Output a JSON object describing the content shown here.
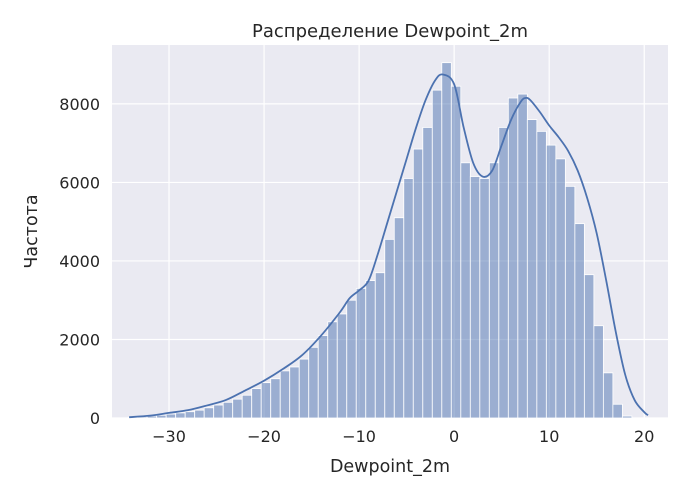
{
  "chart_data": {
    "type": "histogram",
    "title": "Распределение Dewpoint_2m",
    "xlabel": "Dewpoint_2m",
    "ylabel": "Частота",
    "xlim": [
      -36,
      22.5
    ],
    "ylim": [
      0,
      9500
    ],
    "xticks": [
      -30,
      -20,
      -10,
      0,
      10,
      20
    ],
    "xtick_labels": [
      "−30",
      "−20",
      "−10",
      "0",
      "10",
      "20"
    ],
    "yticks": [
      0,
      2000,
      4000,
      6000,
      8000
    ],
    "ytick_labels": [
      "0",
      "2000",
      "4000",
      "6000",
      "8000"
    ],
    "grid": true,
    "bin_start": -34.3,
    "bin_width": 1.0,
    "counts": [
      20,
      30,
      50,
      70,
      100,
      130,
      160,
      200,
      260,
      330,
      400,
      480,
      580,
      750,
      900,
      1000,
      1200,
      1300,
      1500,
      1800,
      2100,
      2450,
      2650,
      3000,
      3300,
      3500,
      3700,
      4550,
      5100,
      6100,
      6850,
      7400,
      8350,
      9050,
      8450,
      6500,
      6150,
      6100,
      6500,
      7400,
      8150,
      8250,
      7600,
      7300,
      6950,
      6600,
      5900,
      4950,
      3650,
      2350,
      1150,
      350,
      50
    ],
    "kde": [
      [
        -34.2,
        20
      ],
      [
        -32,
        60
      ],
      [
        -30,
        130
      ],
      [
        -28,
        200
      ],
      [
        -26,
        320
      ],
      [
        -24,
        460
      ],
      [
        -22,
        700
      ],
      [
        -20,
        950
      ],
      [
        -18,
        1250
      ],
      [
        -16,
        1600
      ],
      [
        -14,
        2100
      ],
      [
        -12,
        2700
      ],
      [
        -11,
        3050
      ],
      [
        -10,
        3250
      ],
      [
        -9,
        3500
      ],
      [
        -8,
        4200
      ],
      [
        -7,
        5000
      ],
      [
        -6,
        5800
      ],
      [
        -5,
        6600
      ],
      [
        -4,
        7400
      ],
      [
        -3,
        8100
      ],
      [
        -2,
        8600
      ],
      [
        -1.2,
        8750
      ],
      [
        0,
        8500
      ],
      [
        1,
        7400
      ],
      [
        2,
        6500
      ],
      [
        3,
        6150
      ],
      [
        4,
        6300
      ],
      [
        5,
        6950
      ],
      [
        6,
        7600
      ],
      [
        7,
        8050
      ],
      [
        7.5,
        8150
      ],
      [
        8,
        8100
      ],
      [
        9,
        7800
      ],
      [
        10,
        7450
      ],
      [
        11,
        7150
      ],
      [
        12,
        6800
      ],
      [
        13,
        6300
      ],
      [
        14,
        5600
      ],
      [
        15,
        4700
      ],
      [
        16,
        3500
      ],
      [
        17,
        2200
      ],
      [
        18,
        1100
      ],
      [
        19,
        450
      ],
      [
        20,
        150
      ],
      [
        20.4,
        70
      ]
    ],
    "bar_color": "#4c72b0",
    "line_color": "#4c72b0",
    "background_color": "#eaeaf2"
  }
}
